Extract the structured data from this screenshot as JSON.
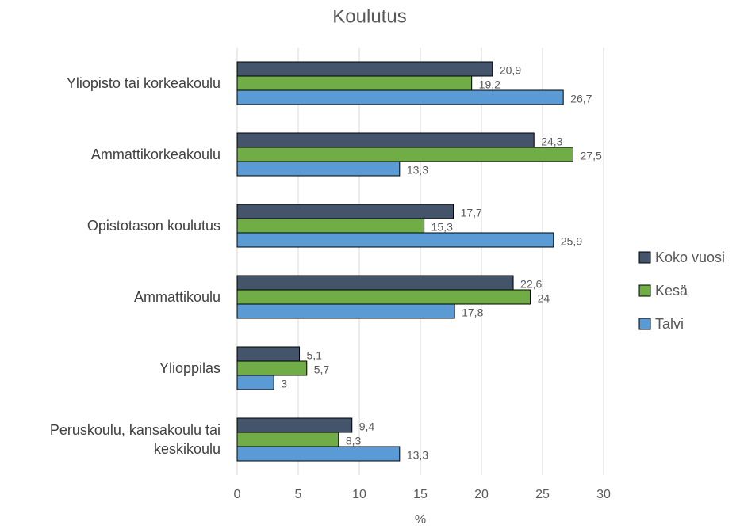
{
  "chart_data": {
    "type": "hbar",
    "title": "Koulutus",
    "xlabel": "%",
    "categories": [
      "Yliopisto tai korkeakoulu",
      "Ammattikorkeakoulu",
      "Opistotason koulutus",
      "Ammattikoulu",
      "Ylioppilas",
      "Peruskoulu, kansakoulu tai keskikoulu"
    ],
    "series": [
      {
        "name": "Koko vuosi",
        "color": "#44546a",
        "values": [
          20.9,
          24.3,
          17.7,
          22.6,
          5.1,
          9.4
        ],
        "value_labels": [
          "20,9",
          "24,3",
          "17,7",
          "22,6",
          "5,1",
          "9,4"
        ]
      },
      {
        "name": "Kesä",
        "color": "#70ad47",
        "values": [
          19.2,
          27.5,
          15.3,
          24,
          5.7,
          8.3
        ],
        "value_labels": [
          "19,2",
          "27,5",
          "15,3",
          "24",
          "5,7",
          "8,3"
        ]
      },
      {
        "name": "Talvi",
        "color": "#5b9bd5",
        "values": [
          26.7,
          13.3,
          25.9,
          17.8,
          3,
          13.3
        ],
        "value_labels": [
          "26,7",
          "13,3",
          "25,9",
          "17,8",
          "3",
          "13,3"
        ]
      }
    ],
    "xlim": [
      0,
      30
    ],
    "xticks": [
      0,
      5,
      10,
      15,
      20,
      25,
      30
    ],
    "grid": true,
    "legend": "right"
  }
}
